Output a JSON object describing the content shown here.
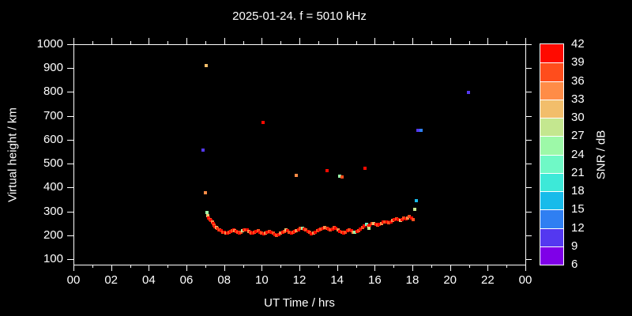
{
  "title": "2025-01-24. f = 5010 kHz",
  "chart_data": {
    "type": "scatter",
    "title": "2025-01-24. f = 5010 kHz",
    "xlabel": "UT Time / hrs",
    "ylabel": "Virtual height / km",
    "colorbar_label": "SNR / dB",
    "xlim": [
      0,
      24
    ],
    "ylim": [
      75,
      1000
    ],
    "grid": false,
    "x_tick_labels": [
      "00",
      "02",
      "04",
      "06",
      "08",
      "10",
      "12",
      "14",
      "16",
      "18",
      "20",
      "22",
      "00"
    ],
    "x_minor_step_hours": 1,
    "y_ticks": [
      100,
      200,
      300,
      400,
      500,
      600,
      700,
      800,
      900,
      1000
    ],
    "colorbar": {
      "min": 6,
      "max": 42,
      "step": 3,
      "tick_labels": [
        42,
        39,
        36,
        33,
        30,
        27,
        24,
        21,
        18,
        15,
        12,
        9,
        6
      ],
      "colors_low_to_high": [
        "#7F00E8",
        "#5438F0",
        "#2F7FF2",
        "#17BBEA",
        "#3DE9D8",
        "#6FF9C6",
        "#9DF9A8",
        "#C4E78F",
        "#F2BE6B",
        "#FF8C47",
        "#FF4D1C",
        "#FF0A00"
      ]
    },
    "background_color": "#000000",
    "axis_color": "#FFFFFF",
    "points_format": [
      "hour_ut",
      "virtual_height_km",
      "snr_db"
    ],
    "points": [
      [
        7.05,
        910,
        31
      ],
      [
        6.88,
        557,
        10
      ],
      [
        10.07,
        672,
        41
      ],
      [
        7.0,
        378,
        34
      ],
      [
        11.85,
        452,
        34
      ],
      [
        13.45,
        472,
        41
      ],
      [
        14.15,
        447,
        25
      ],
      [
        14.27,
        444,
        37
      ],
      [
        15.5,
        480,
        41
      ],
      [
        18.2,
        345,
        16
      ],
      [
        18.13,
        308,
        28
      ],
      [
        18.28,
        638,
        10
      ],
      [
        18.45,
        640,
        12
      ],
      [
        20.98,
        798,
        10
      ],
      [
        7.09,
        295,
        25
      ],
      [
        7.14,
        282,
        31
      ],
      [
        7.19,
        271,
        41
      ],
      [
        7.25,
        266,
        37
      ],
      [
        7.31,
        262,
        41
      ],
      [
        7.37,
        257,
        34
      ],
      [
        7.43,
        248,
        41
      ],
      [
        7.48,
        242,
        37
      ],
      [
        7.53,
        237,
        41
      ],
      [
        7.58,
        231,
        31
      ],
      [
        7.64,
        228,
        37
      ],
      [
        7.71,
        224,
        41
      ],
      [
        7.78,
        221,
        37
      ],
      [
        7.85,
        218,
        41
      ],
      [
        7.92,
        214,
        37
      ],
      [
        8.0,
        212,
        41
      ],
      [
        8.08,
        210,
        34
      ],
      [
        8.17,
        208,
        41
      ],
      [
        8.26,
        212,
        37
      ],
      [
        8.34,
        215,
        41
      ],
      [
        8.42,
        218,
        37
      ],
      [
        8.5,
        221,
        41
      ],
      [
        8.58,
        219,
        34
      ],
      [
        8.66,
        216,
        41
      ],
      [
        8.74,
        212,
        37
      ],
      [
        8.82,
        210,
        41
      ],
      [
        8.9,
        214,
        37
      ],
      [
        8.98,
        219,
        28
      ],
      [
        9.06,
        222,
        41
      ],
      [
        9.14,
        224,
        37
      ],
      [
        9.22,
        221,
        41
      ],
      [
        9.3,
        217,
        34
      ],
      [
        9.38,
        213,
        41
      ],
      [
        9.46,
        210,
        37
      ],
      [
        9.54,
        208,
        41
      ],
      [
        9.62,
        212,
        37
      ],
      [
        9.7,
        215,
        41
      ],
      [
        9.8,
        218,
        37
      ],
      [
        9.9,
        214,
        41
      ],
      [
        10.0,
        210,
        37
      ],
      [
        10.1,
        207,
        41
      ],
      [
        10.2,
        210,
        34
      ],
      [
        10.3,
        214,
        41
      ],
      [
        10.4,
        217,
        37
      ],
      [
        10.5,
        213,
        41
      ],
      [
        10.6,
        208,
        37
      ],
      [
        10.7,
        203,
        41
      ],
      [
        10.8,
        200,
        37
      ],
      [
        10.9,
        204,
        41
      ],
      [
        11.0,
        208,
        34
      ],
      [
        11.1,
        212,
        41
      ],
      [
        11.2,
        216,
        37
      ],
      [
        11.29,
        222,
        31
      ],
      [
        11.38,
        218,
        41
      ],
      [
        11.47,
        214,
        37
      ],
      [
        11.56,
        210,
        41
      ],
      [
        11.65,
        213,
        37
      ],
      [
        11.75,
        217,
        41
      ],
      [
        11.85,
        220,
        34
      ],
      [
        11.95,
        224,
        41
      ],
      [
        12.05,
        228,
        37
      ],
      [
        12.15,
        230,
        25
      ],
      [
        12.25,
        226,
        41
      ],
      [
        12.35,
        221,
        37
      ],
      [
        12.45,
        216,
        41
      ],
      [
        12.55,
        211,
        37
      ],
      [
        12.65,
        207,
        41
      ],
      [
        12.75,
        210,
        34
      ],
      [
        12.85,
        214,
        41
      ],
      [
        12.95,
        218,
        37
      ],
      [
        13.05,
        222,
        41
      ],
      [
        13.15,
        226,
        37
      ],
      [
        13.25,
        230,
        41
      ],
      [
        13.35,
        234,
        34
      ],
      [
        13.45,
        230,
        37
      ],
      [
        13.55,
        226,
        41
      ],
      [
        13.65,
        222,
        37
      ],
      [
        13.75,
        227,
        41
      ],
      [
        13.85,
        232,
        37
      ],
      [
        13.95,
        228,
        41
      ],
      [
        14.05,
        222,
        34
      ],
      [
        14.15,
        217,
        41
      ],
      [
        14.25,
        213,
        37
      ],
      [
        14.35,
        210,
        41
      ],
      [
        14.45,
        214,
        37
      ],
      [
        14.55,
        218,
        41
      ],
      [
        14.65,
        222,
        37
      ],
      [
        14.75,
        218,
        41
      ],
      [
        14.85,
        214,
        34
      ],
      [
        14.94,
        212,
        25
      ],
      [
        15.05,
        216,
        41
      ],
      [
        15.15,
        220,
        37
      ],
      [
        15.25,
        226,
        41
      ],
      [
        15.35,
        232,
        37
      ],
      [
        15.45,
        240,
        41
      ],
      [
        15.55,
        246,
        22
      ],
      [
        15.65,
        240,
        37
      ],
      [
        15.7,
        228,
        28
      ],
      [
        15.75,
        244,
        41
      ],
      [
        15.85,
        248,
        37
      ],
      [
        15.95,
        249,
        31
      ],
      [
        16.05,
        246,
        41
      ],
      [
        16.15,
        243,
        37
      ],
      [
        16.25,
        246,
        41
      ],
      [
        16.35,
        250,
        34
      ],
      [
        16.45,
        254,
        41
      ],
      [
        16.55,
        257,
        37
      ],
      [
        16.65,
        254,
        41
      ],
      [
        16.75,
        251,
        37
      ],
      [
        16.85,
        256,
        41
      ],
      [
        16.95,
        262,
        34
      ],
      [
        17.05,
        266,
        41
      ],
      [
        17.15,
        270,
        37
      ],
      [
        17.25,
        266,
        41
      ],
      [
        17.35,
        262,
        31
      ],
      [
        17.45,
        267,
        41
      ],
      [
        17.55,
        272,
        37
      ],
      [
        17.65,
        268,
        41
      ],
      [
        17.75,
        273,
        34
      ],
      [
        17.85,
        278,
        37
      ],
      [
        17.95,
        272,
        41
      ],
      [
        18.05,
        266,
        37
      ]
    ]
  }
}
